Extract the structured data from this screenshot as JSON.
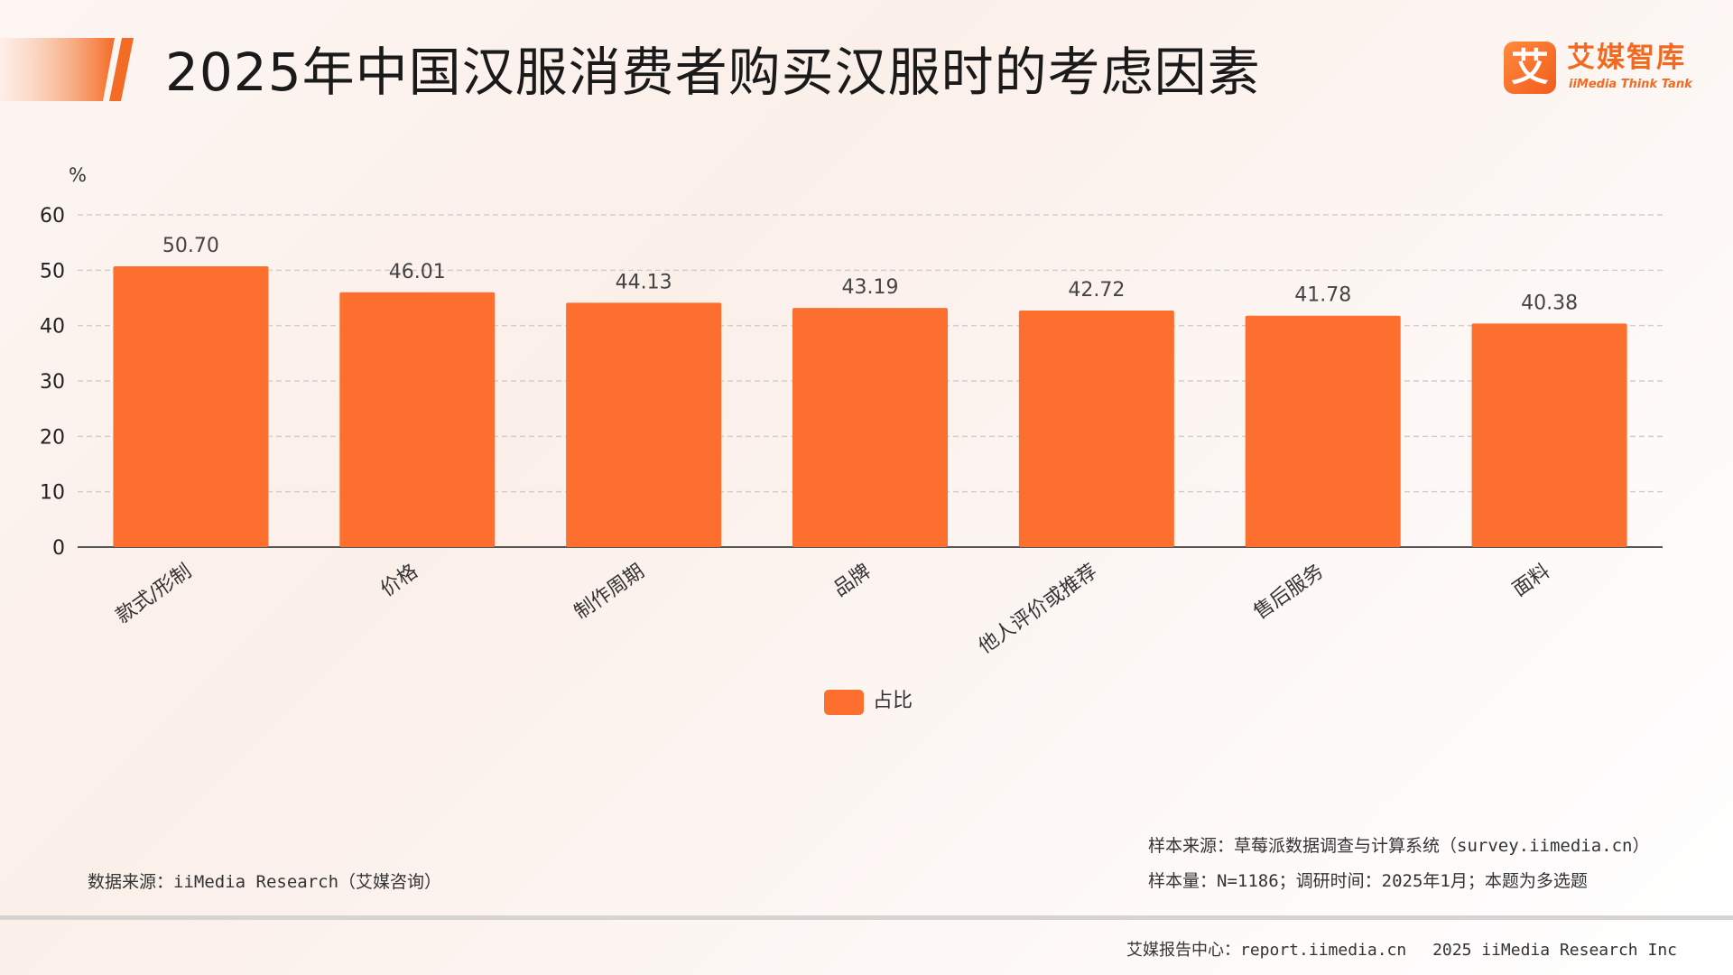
{
  "header": {
    "title": "2025年中国汉服消费者购买汉服时的考虑因素",
    "accent_color": "#f26a21"
  },
  "logo": {
    "mark": "艾",
    "name_cn": "艾媒智库",
    "name_en": "iiMedia Think Tank"
  },
  "chart_data": {
    "type": "bar",
    "title": "",
    "xlabel": "",
    "ylabel": "%",
    "ylim": [
      0,
      60
    ],
    "yticks": [
      0,
      10,
      20,
      30,
      40,
      50,
      60
    ],
    "grid": true,
    "legend_position": "bottom-center",
    "categories": [
      "款式/形制",
      "价格",
      "制作周期",
      "品牌",
      "他人评价或推荐",
      "售后服务",
      "面料"
    ],
    "series": [
      {
        "name": "占比",
        "color": "#fd6f2f",
        "values": [
          50.7,
          46.01,
          44.13,
          43.19,
          42.72,
          41.78,
          40.38
        ],
        "labels": [
          "50.70",
          "46.01",
          "44.13",
          "43.19",
          "42.72",
          "41.78",
          "40.38"
        ]
      }
    ]
  },
  "notes": {
    "data_source": "数据来源：iiMedia Research（艾媒咨询）",
    "sample_source": "样本来源：草莓派数据调查与计算系统（survey.iimedia.cn）",
    "sample_info": "样本量：N=1186；调研时间：2025年1月；本题为多选题"
  },
  "footer": {
    "text": "艾媒报告中心：report.iimedia.cn　 2025 iiMedia Research Inc"
  }
}
